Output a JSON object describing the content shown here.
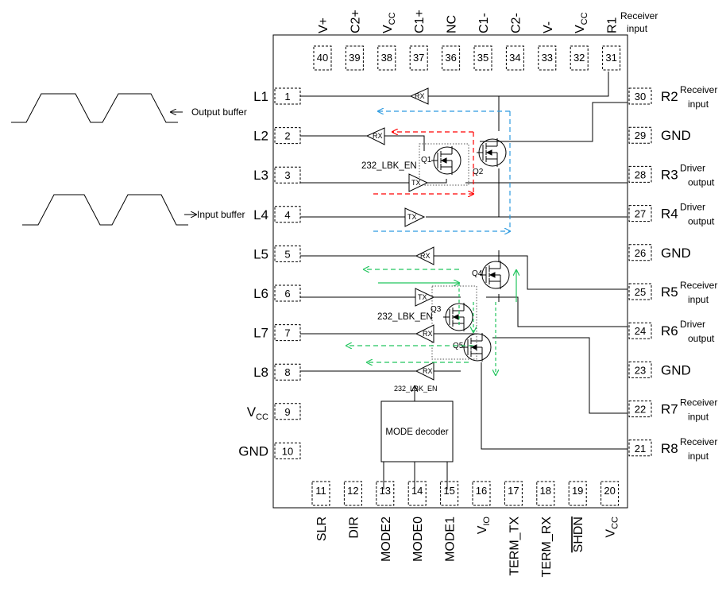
{
  "top_pins": [
    {
      "num": "40",
      "label": "V+"
    },
    {
      "num": "39",
      "label": "C2+"
    },
    {
      "num": "38",
      "label": "V",
      "sub": "CC"
    },
    {
      "num": "37",
      "label": "C1+"
    },
    {
      "num": "36",
      "label": "NC"
    },
    {
      "num": "35",
      "label": "C1-"
    },
    {
      "num": "34",
      "label": "C2-"
    },
    {
      "num": "33",
      "label": "V-"
    },
    {
      "num": "32",
      "label": "V",
      "sub": "CC"
    },
    {
      "num": "31",
      "label": "R1"
    }
  ],
  "top_note": [
    "Receiver",
    "input"
  ],
  "left_pins": [
    {
      "num": "1",
      "label": "L1"
    },
    {
      "num": "2",
      "label": "L2"
    },
    {
      "num": "3",
      "label": "L3"
    },
    {
      "num": "4",
      "label": "L4"
    },
    {
      "num": "5",
      "label": "L5"
    },
    {
      "num": "6",
      "label": "L6"
    },
    {
      "num": "7",
      "label": "L7"
    },
    {
      "num": "8",
      "label": "L8"
    },
    {
      "num": "9",
      "label": "V",
      "sub": "CC"
    },
    {
      "num": "10",
      "label": "GND"
    }
  ],
  "right_pins": [
    {
      "num": "30",
      "label": "R2",
      "note": [
        "Receiver",
        "input"
      ]
    },
    {
      "num": "29",
      "label": "GND",
      "note": []
    },
    {
      "num": "28",
      "label": "R3",
      "note": [
        "Driver",
        "output"
      ]
    },
    {
      "num": "27",
      "label": "R4",
      "note": [
        "Driver",
        "output"
      ]
    },
    {
      "num": "26",
      "label": "GND",
      "note": []
    },
    {
      "num": "25",
      "label": "R5",
      "note": [
        "Receiver",
        "input"
      ]
    },
    {
      "num": "24",
      "label": "R6",
      "note": [
        "Driver",
        "output"
      ]
    },
    {
      "num": "23",
      "label": "GND",
      "note": []
    },
    {
      "num": "22",
      "label": "R7",
      "note": [
        "Receiver",
        "input"
      ]
    },
    {
      "num": "21",
      "label": "R8",
      "note": [
        "Receiver",
        "input"
      ]
    }
  ],
  "bottom_pins": [
    {
      "num": "11",
      "label": "SLR"
    },
    {
      "num": "12",
      "label": "DIR"
    },
    {
      "num": "13",
      "label": "MODE2"
    },
    {
      "num": "14",
      "label": "MODE0"
    },
    {
      "num": "15",
      "label": "MODE1"
    },
    {
      "num": "16",
      "label": "V",
      "sub": "IO"
    },
    {
      "num": "17",
      "label": "TERM_TX"
    },
    {
      "num": "18",
      "label": "TERM_RX"
    },
    {
      "num": "19",
      "label": "SHDN",
      "overline": true
    },
    {
      "num": "20",
      "label": "V",
      "sub": "CC"
    }
  ],
  "waveforms": {
    "output_label": "Output buffer",
    "input_label": "Input buffer"
  },
  "mode_decoder": {
    "label": "MODE decoder",
    "output_signal": "232_LBK_EN"
  },
  "enable_labels": [
    "232_LBK_EN",
    "232_LBK_EN"
  ],
  "buffer_labels": {
    "rx": "RX",
    "tx": "TX"
  },
  "transistors": [
    "Q1",
    "Q2",
    "Q3",
    "Q4",
    "Q5"
  ],
  "colors": {
    "line": "#000000",
    "path_red": "#ff0000",
    "path_blue": "#2e9be0",
    "path_green": "#22c55e"
  }
}
